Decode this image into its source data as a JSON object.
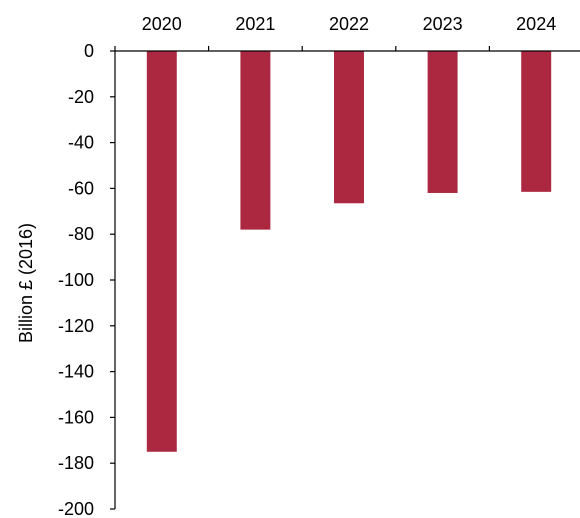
{
  "chart_data": {
    "type": "bar",
    "categories": [
      "2020",
      "2021",
      "2022",
      "2023",
      "2024"
    ],
    "values": [
      -175,
      -78,
      -66.5,
      -62,
      -61.5
    ],
    "ylabel": "Billion £ (2016)",
    "ylim": [
      -200,
      0
    ],
    "yticks": [
      "0",
      "-20",
      "-40",
      "-60",
      "-80",
      "-100",
      "-120",
      "-140",
      "-160",
      "-180",
      "-200"
    ],
    "category_axis_position": "top",
    "grid": false,
    "bar_color": "#ab2840"
  }
}
